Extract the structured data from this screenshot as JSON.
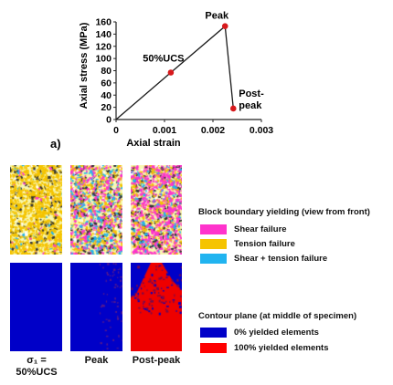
{
  "chart_data": {
    "type": "line",
    "label": "a)",
    "xlabel": "Axial strain",
    "ylabel": "Axial stress (MPa)",
    "xlim": [
      0,
      0.003
    ],
    "ylim": [
      0,
      160
    ],
    "x_ticks": [
      "0",
      "0.001",
      "0.002",
      "0.003"
    ],
    "y_ticks": [
      "0",
      "20",
      "40",
      "60",
      "80",
      "100",
      "120",
      "140",
      "160"
    ],
    "series": [
      {
        "points": [
          {
            "x": 0,
            "y": 0
          },
          {
            "x": 0.00113,
            "y": 77
          },
          {
            "x": 0.00225,
            "y": 153
          },
          {
            "x": 0.00242,
            "y": 18
          }
        ]
      }
    ],
    "markers": [
      {
        "label": "50%UCS",
        "x": 0.00113,
        "y": 77
      },
      {
        "label": "Peak",
        "x": 0.00225,
        "y": 153
      },
      {
        "label": "Post-\npeak",
        "x": 0.00242,
        "y": 18
      }
    ],
    "marker_color": "#d7191c"
  },
  "panels": {
    "column_labels": [
      "σ₁ =\n50%UCS",
      "Peak",
      "Post-peak"
    ]
  },
  "legend_top": {
    "title": "Block boundary yielding (view from front)",
    "items": [
      {
        "label": "Shear failure",
        "color": "#ff33cc"
      },
      {
        "label": "Tension failure",
        "color": "#f5c400"
      },
      {
        "label": "Shear + tension failure",
        "color": "#21b4f0"
      }
    ]
  },
  "legend_bottom": {
    "title": "Contour plane (at middle of specimen)",
    "items": [
      {
        "label": "0% yielded elements",
        "color": "#0000c8"
      },
      {
        "label": "100% yielded elements",
        "color": "#ff0000"
      }
    ]
  }
}
